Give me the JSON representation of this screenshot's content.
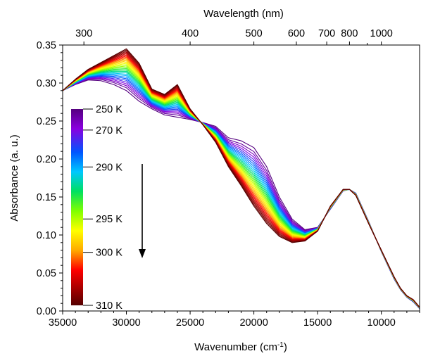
{
  "chart_data": {
    "type": "line",
    "x_axis": {
      "label_main": "Wavenumber (cm",
      "label_sup": "-1",
      "label_end": ")",
      "range": [
        35000,
        7000
      ],
      "ticks": [
        "35000",
        "30000",
        "25000",
        "20000",
        "15000",
        "10000"
      ],
      "tick_values": [
        35000,
        30000,
        25000,
        20000,
        15000,
        10000
      ]
    },
    "top_axis": {
      "label": "Wavelength (nm)",
      "ticks": [
        "300",
        "400",
        "500",
        "600",
        "700",
        "800",
        "1000"
      ],
      "tick_values_nm": [
        300,
        400,
        500,
        600,
        700,
        800,
        1000
      ],
      "minor_ticks_nm": [
        900
      ]
    },
    "y_axis": {
      "label": "Absorbance (a. u.)",
      "range": [
        0,
        0.35
      ],
      "ticks": [
        "0.00",
        "0.05",
        "0.10",
        "0.15",
        "0.20",
        "0.25",
        "0.30",
        "0.35"
      ],
      "tick_values": [
        0,
        0.05,
        0.1,
        0.15,
        0.2,
        0.25,
        0.3,
        0.35
      ]
    },
    "grid": false,
    "temperature_range_K": [
      250,
      310
    ],
    "curve_count": 30,
    "reference_spectra": {
      "x": [
        35000,
        34000,
        33000,
        32000,
        31000,
        30000,
        29000,
        28000,
        27000,
        26000,
        25000,
        24000,
        23000,
        22000,
        21000,
        20000,
        19000,
        18000,
        17000,
        16000,
        15000,
        14000,
        13000,
        12500,
        12000,
        11000,
        10000,
        9000,
        8500,
        8000,
        7500,
        7000
      ],
      "high_T_310K": [
        0.29,
        0.305,
        0.318,
        0.327,
        0.336,
        0.345,
        0.326,
        0.292,
        0.285,
        0.298,
        0.266,
        0.245,
        0.222,
        0.19,
        0.165,
        0.138,
        0.115,
        0.098,
        0.09,
        0.092,
        0.105,
        0.138,
        0.16,
        0.16,
        0.152,
        0.115,
        0.08,
        0.045,
        0.03,
        0.02,
        0.015,
        0.005
      ],
      "low_T_250K": [
        0.29,
        0.298,
        0.304,
        0.303,
        0.298,
        0.29,
        0.276,
        0.266,
        0.258,
        0.255,
        0.252,
        0.248,
        0.243,
        0.228,
        0.224,
        0.215,
        0.19,
        0.15,
        0.121,
        0.107,
        0.11,
        0.134,
        0.158,
        0.16,
        0.155,
        0.118,
        0.078,
        0.042,
        0.028,
        0.018,
        0.012,
        0.003
      ]
    },
    "colorbar": {
      "labels": [
        "250 K",
        "270 K",
        "290 K",
        "295 K",
        "300 K",
        "310 K"
      ],
      "colors": [
        "#55007f",
        "#8a00e0",
        "#0055ff",
        "#00c8ff",
        "#00e060",
        "#80ff00",
        "#ffff00",
        "#ffaa00",
        "#ff0000",
        "#a00000",
        "#550000"
      ]
    },
    "arrow": "down"
  }
}
